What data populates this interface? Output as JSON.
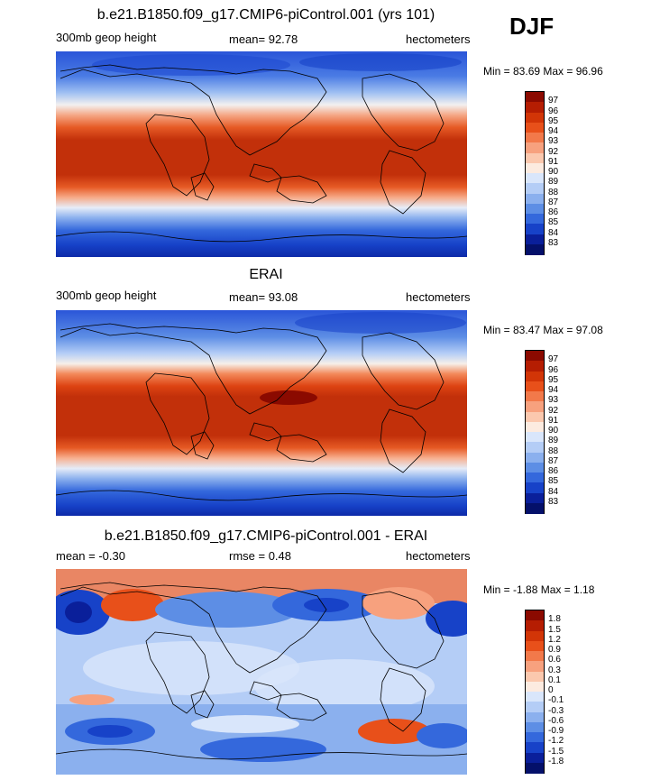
{
  "season": "DJF",
  "chart_data": [
    {
      "type": "heatmap",
      "title": "b.e21.B1850.f09_g17.CMIP6-piControl.001 (yrs 101)",
      "left_label": "300mb geop height",
      "center_label": "mean=  92.78",
      "right_label": "hectometers",
      "minmax_text": "Min =  83.69 Max =  96.96",
      "min": 83.69,
      "max": 96.96,
      "mean": 92.78,
      "colorbar_levels": [
        "97",
        "96",
        "95",
        "94",
        "93",
        "92",
        "91",
        "90",
        "89",
        "88",
        "87",
        "86",
        "85",
        "84",
        "83"
      ],
      "colorbar_colors": [
        "#8b0a00",
        "#b51d02",
        "#d23507",
        "#e8501a",
        "#f2794a",
        "#f7a17e",
        "#fbc8ae",
        "#fcebe0",
        "#d9e6fb",
        "#b4cdf6",
        "#8bb0ee",
        "#5d8ee5",
        "#3468dc",
        "#1742c8",
        "#0a1f9a",
        "#04106a"
      ]
    },
    {
      "type": "heatmap",
      "title": "ERAI",
      "left_label": "300mb geop height",
      "center_label": "mean=  93.08",
      "right_label": "hectometers",
      "minmax_text": "Min =  83.47 Max =  97.08",
      "min": 83.47,
      "max": 97.08,
      "mean": 93.08,
      "colorbar_levels": [
        "97",
        "96",
        "95",
        "94",
        "93",
        "92",
        "91",
        "90",
        "89",
        "88",
        "87",
        "86",
        "85",
        "84",
        "83"
      ],
      "colorbar_colors": [
        "#8b0a00",
        "#b51d02",
        "#d23507",
        "#e8501a",
        "#f2794a",
        "#f7a17e",
        "#fbc8ae",
        "#fcebe0",
        "#d9e6fb",
        "#b4cdf6",
        "#8bb0ee",
        "#5d8ee5",
        "#3468dc",
        "#1742c8",
        "#0a1f9a",
        "#04106a"
      ]
    },
    {
      "type": "heatmap",
      "title": "b.e21.B1850.f09_g17.CMIP6-piControl.001 - ERAI",
      "left_label": "mean =  -0.30",
      "center_label": "rmse =   0.48",
      "right_label": "hectometers",
      "minmax_text": "Min =  -1.88 Max =   1.18",
      "min": -1.88,
      "max": 1.18,
      "mean": -0.3,
      "rmse": 0.48,
      "colorbar_levels": [
        "1.8",
        "1.5",
        "1.2",
        "0.9",
        "0.6",
        "0.3",
        "0.1",
        "0",
        "-0.1",
        "-0.3",
        "-0.6",
        "-0.9",
        "-1.2",
        "-1.5",
        "-1.8"
      ],
      "colorbar_colors": [
        "#8b0a00",
        "#b51d02",
        "#d23507",
        "#e8501a",
        "#f2794a",
        "#f7a17e",
        "#fbc8ae",
        "#fcebe0",
        "#d9e6fb",
        "#b4cdf6",
        "#8bb0ee",
        "#5d8ee5",
        "#3468dc",
        "#1742c8",
        "#0a1f9a",
        "#04106a"
      ]
    }
  ]
}
